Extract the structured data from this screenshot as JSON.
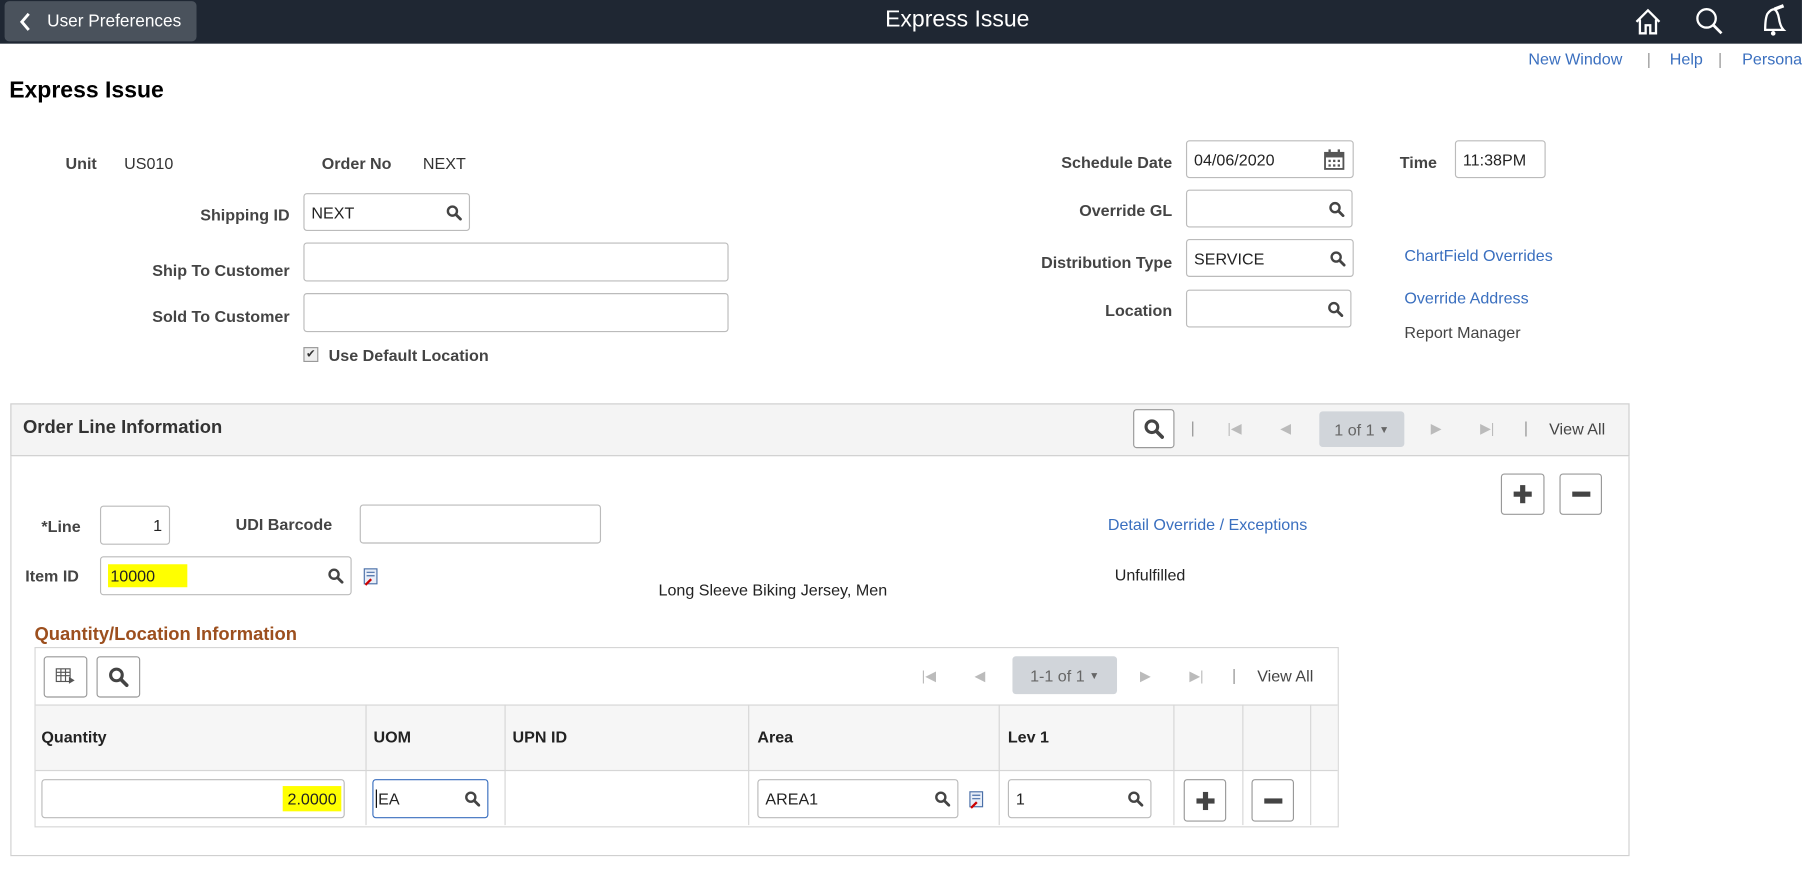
{
  "header": {
    "back_label": "User Preferences",
    "title": "Express Issue"
  },
  "links": {
    "new_window": "New Window",
    "help": "Help",
    "personalize": "Persona"
  },
  "page_title": "Express Issue",
  "form": {
    "unit_label": "Unit",
    "unit_value": "US010",
    "order_no_label": "Order No",
    "order_no_value": "NEXT",
    "shipping_id_label": "Shipping ID",
    "shipping_id_value": "NEXT",
    "ship_to_label": "Ship To Customer",
    "ship_to_value": "",
    "sold_to_label": "Sold To Customer",
    "sold_to_value": "",
    "use_default_location_label": "Use Default Location",
    "use_default_location_checked": true,
    "schedule_date_label": "Schedule Date",
    "schedule_date_value": "04/06/2020",
    "time_label": "Time",
    "time_value": "11:38PM",
    "override_gl_label": "Override GL",
    "override_gl_value": "",
    "distribution_type_label": "Distribution Type",
    "distribution_type_value": "SERVICE",
    "location_label": "Location",
    "location_value": "",
    "chartfield_overrides": "ChartField Overrides",
    "override_address": "Override Address",
    "report_manager": "Report Manager"
  },
  "order_line": {
    "title": "Order Line Information",
    "pager": "1 of 1",
    "view_all": "View All",
    "line_label": "*Line",
    "line_value": "1",
    "udi_label": "UDI Barcode",
    "udi_value": "",
    "detail_override": "Detail Override / Exceptions",
    "item_id_label": "Item ID",
    "item_id_value": "10000",
    "item_description": "Long Sleeve Biking Jersey, Men",
    "status": "Unfulfilled"
  },
  "qty_loc": {
    "title": "Quantity/Location Information",
    "pager": "1-1 of 1",
    "view_all": "View All",
    "columns": [
      "Quantity",
      "UOM",
      "UPN ID",
      "Area",
      "Lev 1"
    ],
    "rows": [
      {
        "quantity": "2.0000",
        "uom": "EA",
        "upn_id": "",
        "area": "AREA1",
        "lev1": "1"
      }
    ]
  },
  "colors": {
    "header_bg": "#1f2733",
    "link": "#3a6fbf",
    "section_title": "#9c4f1e",
    "highlight": "#ffff00"
  }
}
